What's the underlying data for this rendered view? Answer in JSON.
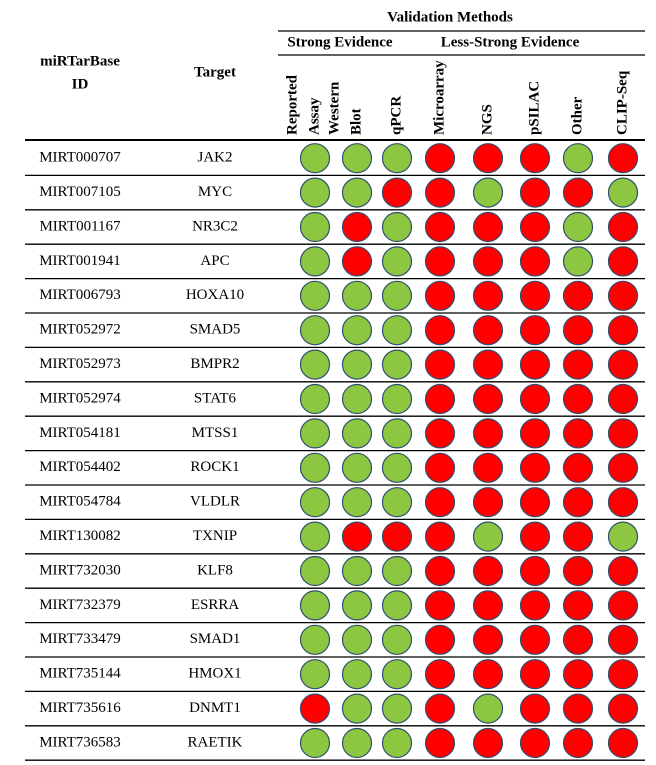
{
  "header": {
    "title": "Validation Methods",
    "groups": [
      "Strong Evidence",
      "Less-Strong Evidence"
    ],
    "id_label": [
      "miRTarBase",
      "ID"
    ],
    "target_label": "Target",
    "columns": [
      [
        "Reported",
        "Assay"
      ],
      [
        "Western",
        "Blot"
      ],
      [
        "qPCR"
      ],
      [
        "Microarray"
      ],
      [
        "NGS"
      ],
      [
        "pSILAC"
      ],
      [
        "Other"
      ],
      [
        "CLIP-Seq"
      ]
    ]
  },
  "table": {
    "rows": [
      {
        "id": "MIRT000707",
        "target": "JAK2",
        "results": [
          "#8dc641",
          "#8dc641",
          "#8dc641",
          "#ff0000",
          "#ff0000",
          "#ff0000",
          "#8dc641",
          "#ff0000"
        ]
      },
      {
        "id": "MIRT007105",
        "target": "MYC",
        "results": [
          "#8dc641",
          "#8dc641",
          "#ff0000",
          "#ff0000",
          "#8dc641",
          "#ff0000",
          "#ff0000",
          "#8dc641"
        ]
      },
      {
        "id": "MIRT001167",
        "target": "NR3C2",
        "results": [
          "#8dc641",
          "#ff0000",
          "#8dc641",
          "#ff0000",
          "#ff0000",
          "#ff0000",
          "#8dc641",
          "#ff0000"
        ]
      },
      {
        "id": "MIRT001941",
        "target": "APC",
        "results": [
          "#8dc641",
          "#ff0000",
          "#8dc641",
          "#ff0000",
          "#ff0000",
          "#ff0000",
          "#8dc641",
          "#ff0000"
        ]
      },
      {
        "id": "MIRT006793",
        "target": "HOXA10",
        "results": [
          "#8dc641",
          "#8dc641",
          "#8dc641",
          "#ff0000",
          "#ff0000",
          "#ff0000",
          "#ff0000",
          "#ff0000"
        ]
      },
      {
        "id": "MIRT052972",
        "target": "SMAD5",
        "results": [
          "#8dc641",
          "#8dc641",
          "#8dc641",
          "#ff0000",
          "#ff0000",
          "#ff0000",
          "#ff0000",
          "#ff0000"
        ]
      },
      {
        "id": "MIRT052973",
        "target": "BMPR2",
        "results": [
          "#8dc641",
          "#8dc641",
          "#8dc641",
          "#ff0000",
          "#ff0000",
          "#ff0000",
          "#ff0000",
          "#ff0000"
        ]
      },
      {
        "id": "MIRT052974",
        "target": "STAT6",
        "results": [
          "#8dc641",
          "#8dc641",
          "#8dc641",
          "#ff0000",
          "#ff0000",
          "#ff0000",
          "#ff0000",
          "#ff0000"
        ]
      },
      {
        "id": "MIRT054181",
        "target": "MTSS1",
        "results": [
          "#8dc641",
          "#8dc641",
          "#8dc641",
          "#ff0000",
          "#ff0000",
          "#ff0000",
          "#ff0000",
          "#ff0000"
        ]
      },
      {
        "id": "MIRT054402",
        "target": "ROCK1",
        "results": [
          "#8dc641",
          "#8dc641",
          "#8dc641",
          "#ff0000",
          "#ff0000",
          "#ff0000",
          "#ff0000",
          "#ff0000"
        ]
      },
      {
        "id": "MIRT054784",
        "target": "VLDLR",
        "results": [
          "#8dc641",
          "#8dc641",
          "#8dc641",
          "#ff0000",
          "#ff0000",
          "#ff0000",
          "#ff0000",
          "#ff0000"
        ]
      },
      {
        "id": "MIRT130082",
        "target": "TXNIP",
        "results": [
          "#8dc641",
          "#ff0000",
          "#ff0000",
          "#ff0000",
          "#8dc641",
          "#ff0000",
          "#ff0000",
          "#8dc641"
        ]
      },
      {
        "id": "MIRT732030",
        "target": "KLF8",
        "results": [
          "#8dc641",
          "#8dc641",
          "#8dc641",
          "#ff0000",
          "#ff0000",
          "#ff0000",
          "#ff0000",
          "#ff0000"
        ]
      },
      {
        "id": "MIRT732379",
        "target": "ESRRA",
        "results": [
          "#8dc641",
          "#8dc641",
          "#8dc641",
          "#ff0000",
          "#ff0000",
          "#ff0000",
          "#ff0000",
          "#ff0000"
        ]
      },
      {
        "id": "MIRT733479",
        "target": "SMAD1",
        "results": [
          "#8dc641",
          "#8dc641",
          "#8dc641",
          "#ff0000",
          "#ff0000",
          "#ff0000",
          "#ff0000",
          "#ff0000"
        ]
      },
      {
        "id": "MIRT735144",
        "target": "HMOX1",
        "results": [
          "#8dc641",
          "#8dc641",
          "#8dc641",
          "#ff0000",
          "#ff0000",
          "#ff0000",
          "#ff0000",
          "#ff0000"
        ]
      },
      {
        "id": "MIRT735616",
        "target": "DNMT1",
        "results": [
          "#ff0000",
          "#8dc641",
          "#8dc641",
          "#ff0000",
          "#8dc641",
          "#ff0000",
          "#ff0000",
          "#ff0000"
        ]
      },
      {
        "id": "MIRT736583",
        "target": "RAETIK",
        "results": [
          "#8dc641",
          "#8dc641",
          "#8dc641",
          "#ff0000",
          "#ff0000",
          "#ff0000",
          "#ff0000",
          "#ff0000"
        ]
      }
    ]
  }
}
